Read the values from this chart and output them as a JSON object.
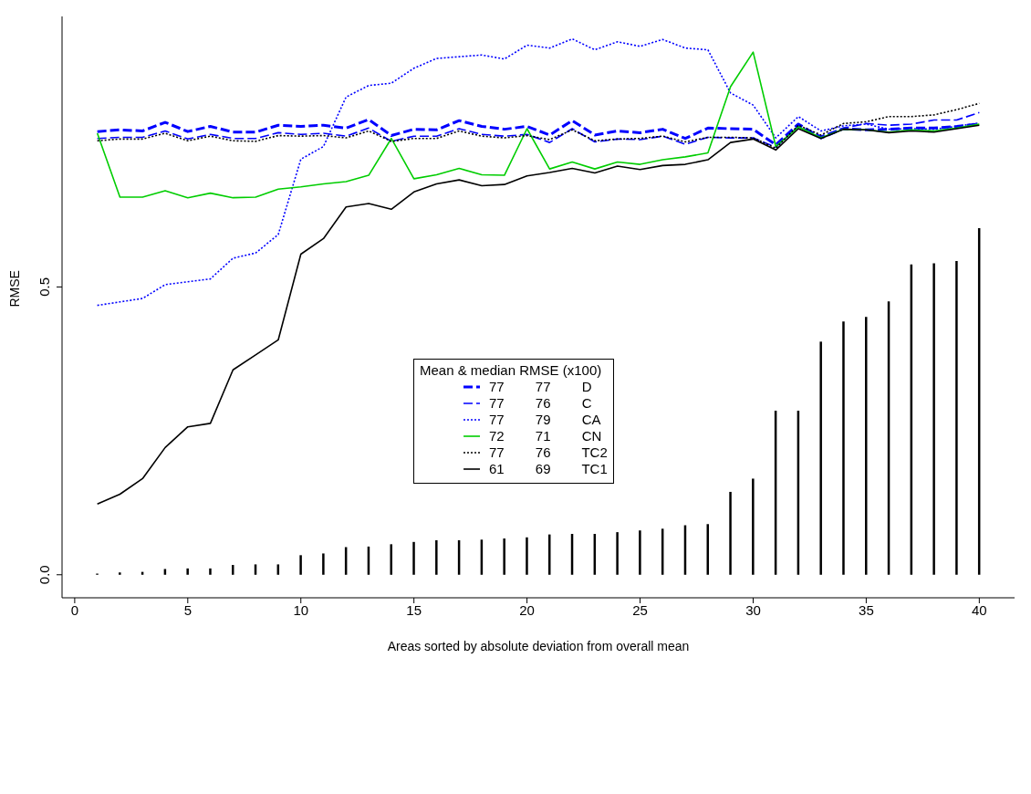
{
  "chart_data": {
    "type": "line",
    "xlabel": "Areas sorted by absolute deviation from overall mean",
    "ylabel": "RMSE",
    "legend_title": "Mean & median  RMSE (x100)",
    "legend": "center",
    "grid": false,
    "marker": "none",
    "x": [
      1,
      2,
      3,
      4,
      5,
      6,
      7,
      8,
      9,
      10,
      11,
      12,
      13,
      14,
      15,
      16,
      17,
      18,
      19,
      20,
      21,
      22,
      23,
      24,
      25,
      26,
      27,
      28,
      29,
      30,
      31,
      32,
      33,
      34,
      35,
      36,
      37,
      38,
      39,
      40
    ],
    "xlim": [
      -0.56,
      41.56
    ],
    "xticks": [
      0,
      5,
      10,
      15,
      20,
      25,
      30,
      35,
      40
    ],
    "ylim": [
      -0.04,
      0.97
    ],
    "yticks": [
      {
        "value": 0,
        "label": "0.0"
      },
      0.5
    ],
    "series": [
      {
        "name": "77 77 D",
        "color": "#0000ff",
        "line_style": "dashed",
        "values": [
          0.77,
          0.773,
          0.771,
          0.786,
          0.77,
          0.779,
          0.769,
          0.769,
          0.781,
          0.779,
          0.781,
          0.776,
          0.791,
          0.763,
          0.774,
          0.773,
          0.789,
          0.779,
          0.774,
          0.779,
          0.764,
          0.789,
          0.764,
          0.771,
          0.768,
          0.774,
          0.758,
          0.776,
          0.775,
          0.774,
          0.747,
          0.783,
          0.759,
          0.775,
          0.773,
          0.774,
          0.776,
          0.776,
          0.779,
          0.783
        ]
      },
      {
        "name": "77 76 C",
        "color": "#0000ff",
        "line_style": "dashed",
        "values": [
          0.758,
          0.76,
          0.76,
          0.771,
          0.757,
          0.765,
          0.758,
          0.758,
          0.768,
          0.765,
          0.767,
          0.762,
          0.776,
          0.753,
          0.762,
          0.762,
          0.775,
          0.765,
          0.762,
          0.765,
          0.751,
          0.775,
          0.752,
          0.757,
          0.756,
          0.762,
          0.748,
          0.76,
          0.759,
          0.759,
          0.743,
          0.779,
          0.762,
          0.776,
          0.784,
          0.781,
          0.783,
          0.79,
          0.79,
          0.803
        ]
      },
      {
        "name": "77 79 CA",
        "color": "#0000ff",
        "line_style": "dotted",
        "values": [
          0.468,
          0.474,
          0.48,
          0.504,
          0.509,
          0.514,
          0.55,
          0.559,
          0.591,
          0.722,
          0.744,
          0.83,
          0.85,
          0.854,
          0.88,
          0.897,
          0.9,
          0.903,
          0.896,
          0.92,
          0.915,
          0.931,
          0.912,
          0.926,
          0.918,
          0.93,
          0.915,
          0.912,
          0.837,
          0.816,
          0.759,
          0.796,
          0.771,
          0.78,
          0.783,
          0.774,
          0.775,
          0.774,
          0.779,
          0.785
        ]
      },
      {
        "name": "72 71 CN",
        "color": "#00cd00",
        "line_style": "solid",
        "values": [
          0.767,
          0.656,
          0.656,
          0.667,
          0.655,
          0.663,
          0.655,
          0.656,
          0.67,
          0.674,
          0.679,
          0.683,
          0.694,
          0.758,
          0.688,
          0.695,
          0.706,
          0.695,
          0.694,
          0.775,
          0.705,
          0.717,
          0.705,
          0.717,
          0.713,
          0.721,
          0.726,
          0.733,
          0.848,
          0.908,
          0.744,
          0.778,
          0.759,
          0.774,
          0.773,
          0.769,
          0.773,
          0.771,
          0.776,
          0.783
        ]
      },
      {
        "name": "77 76 TC2",
        "color": "#000000",
        "line_style": "dotted",
        "values": [
          0.754,
          0.757,
          0.757,
          0.767,
          0.754,
          0.762,
          0.754,
          0.753,
          0.763,
          0.762,
          0.763,
          0.759,
          0.771,
          0.753,
          0.758,
          0.758,
          0.771,
          0.762,
          0.759,
          0.763,
          0.756,
          0.773,
          0.754,
          0.757,
          0.758,
          0.762,
          0.752,
          0.76,
          0.76,
          0.759,
          0.741,
          0.781,
          0.764,
          0.784,
          0.787,
          0.796,
          0.796,
          0.799,
          0.808,
          0.819
        ]
      },
      {
        "name": "61 69 TC1",
        "color": "#000000",
        "line_style": "solid",
        "values": [
          0.123,
          0.14,
          0.167,
          0.221,
          0.257,
          0.263,
          0.356,
          0.382,
          0.408,
          0.557,
          0.584,
          0.639,
          0.645,
          0.635,
          0.665,
          0.679,
          0.686,
          0.676,
          0.678,
          0.693,
          0.699,
          0.706,
          0.698,
          0.71,
          0.704,
          0.711,
          0.713,
          0.721,
          0.751,
          0.757,
          0.738,
          0.775,
          0.758,
          0.774,
          0.773,
          0.768,
          0.771,
          0.769,
          0.775,
          0.781
        ]
      },
      {
        "type": "bar",
        "color": "#000000",
        "values": [
          0.002,
          0.004,
          0.005,
          0.01,
          0.011,
          0.011,
          0.017,
          0.018,
          0.018,
          0.034,
          0.037,
          0.048,
          0.049,
          0.053,
          0.057,
          0.06,
          0.06,
          0.061,
          0.063,
          0.065,
          0.07,
          0.071,
          0.071,
          0.074,
          0.077,
          0.08,
          0.086,
          0.088,
          0.144,
          0.167,
          0.285,
          0.285,
          0.405,
          0.44,
          0.448,
          0.475,
          0.539,
          0.541,
          0.545,
          0.602
        ]
      }
    ]
  }
}
